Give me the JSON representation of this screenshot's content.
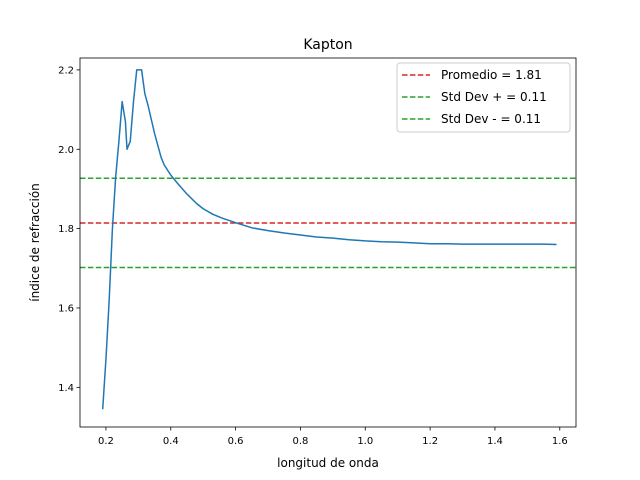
{
  "chart_data": {
    "type": "line",
    "title": "Kapton",
    "xlabel": "longitud de onda",
    "ylabel": "índice de refracción",
    "xlim": [
      0.12,
      1.65
    ],
    "ylim": [
      1.3,
      2.23
    ],
    "xticks": [
      0.2,
      0.4,
      0.6,
      0.8,
      1.0,
      1.2,
      1.4,
      1.6
    ],
    "xtick_labels": [
      "0.2",
      "0.4",
      "0.6",
      "0.8",
      "1.0",
      "1.2",
      "1.4",
      "1.6"
    ],
    "yticks": [
      1.4,
      1.6,
      1.8,
      2.0,
      2.2
    ],
    "ytick_labels": [
      "1.4",
      "1.6",
      "1.8",
      "2.0",
      "2.2"
    ],
    "grid": false,
    "legend_position": "top-right",
    "series": [
      {
        "color": "#1f77b4",
        "x": [
          0.19,
          0.2,
          0.21,
          0.22,
          0.23,
          0.24,
          0.25,
          0.26,
          0.265,
          0.275,
          0.285,
          0.295,
          0.31,
          0.32,
          0.33,
          0.35,
          0.37,
          0.38,
          0.4,
          0.42,
          0.45,
          0.48,
          0.5,
          0.53,
          0.56,
          0.6,
          0.65,
          0.7,
          0.75,
          0.8,
          0.85,
          0.9,
          0.95,
          1.0,
          1.05,
          1.1,
          1.15,
          1.2,
          1.25,
          1.3,
          1.35,
          1.4,
          1.45,
          1.5,
          1.55,
          1.59
        ],
        "y": [
          1.345,
          1.47,
          1.62,
          1.8,
          1.93,
          2.02,
          2.12,
          2.07,
          2.0,
          2.02,
          2.12,
          2.2,
          2.2,
          2.14,
          2.11,
          2.04,
          1.98,
          1.96,
          1.935,
          1.915,
          1.887,
          1.863,
          1.85,
          1.836,
          1.826,
          1.815,
          1.802,
          1.795,
          1.789,
          1.784,
          1.779,
          1.776,
          1.772,
          1.769,
          1.767,
          1.766,
          1.764,
          1.762,
          1.762,
          1.761,
          1.761,
          1.761,
          1.761,
          1.761,
          1.761,
          1.76
        ]
      }
    ],
    "reference_lines": [
      {
        "label": "Promedio = 1.81",
        "y": 1.814,
        "color": "#d62728",
        "dash": "dashed"
      },
      {
        "label": "Std Dev + = 0.11",
        "y": 1.927,
        "color": "#2ca02c",
        "dash": "dashed"
      },
      {
        "label": "Std Dev - = 0.11",
        "y": 1.702,
        "color": "#2ca02c",
        "dash": "dashed"
      }
    ]
  }
}
